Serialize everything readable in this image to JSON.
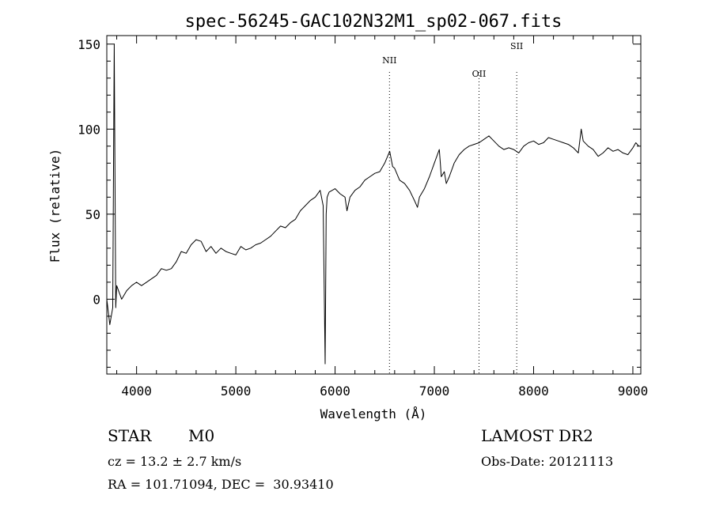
{
  "chart_data": {
    "type": "line",
    "title": "spec-56245-GAC102N32M1_sp02-067.fits",
    "xlabel": "Wavelength (Å)",
    "ylabel": "Flux (relative)",
    "xlim": [
      3700,
      9080
    ],
    "ylim": [
      -44,
      155
    ],
    "xticks": [
      4000,
      5000,
      6000,
      7000,
      8000,
      9000
    ],
    "yticks": [
      0,
      50,
      100,
      150
    ],
    "grid": false,
    "line_color": "#000000",
    "series": [
      {
        "x": [
          3700,
          3730,
          3760,
          3775,
          3790,
          3800,
          3850,
          3900,
          3950,
          4000,
          4050,
          4100,
          4150,
          4200,
          4250,
          4300,
          4350,
          4400,
          4450,
          4500,
          4550,
          4600,
          4650,
          4700,
          4750,
          4800,
          4850,
          4900,
          4950,
          5000,
          5050,
          5100,
          5150,
          5200,
          5250,
          5300,
          5350,
          5400,
          5450,
          5500,
          5550,
          5600,
          5650,
          5700,
          5750,
          5800,
          5850,
          5880,
          5900,
          5910,
          5920,
          5940,
          6000,
          6050,
          6100,
          6120,
          6150,
          6200,
          6250,
          6300,
          6350,
          6400,
          6450,
          6500,
          6550,
          6580,
          6600,
          6650,
          6700,
          6750,
          6800,
          6830,
          6850,
          6900,
          6950,
          7000,
          7050,
          7060,
          7070,
          7100,
          7120,
          7150,
          7200,
          7250,
          7300,
          7350,
          7400,
          7450,
          7500,
          7550,
          7600,
          7650,
          7700,
          7750,
          7800,
          7850,
          7900,
          7950,
          8000,
          8050,
          8100,
          8150,
          8200,
          8250,
          8300,
          8350,
          8400,
          8450,
          8480,
          8500,
          8550,
          8600,
          8650,
          8700,
          8750,
          8800,
          8850,
          8900,
          8950,
          9000,
          9030,
          9060
        ],
        "y": [
          0,
          -15,
          -5,
          150,
          -5,
          8,
          0,
          5,
          8,
          10,
          8,
          10,
          12,
          14,
          18,
          17,
          18,
          22,
          28,
          27,
          32,
          35,
          34,
          28,
          31,
          27,
          30,
          28,
          27,
          26,
          31,
          29,
          30,
          32,
          33,
          35,
          37,
          40,
          43,
          42,
          45,
          47,
          52,
          55,
          58,
          60,
          64,
          55,
          -38,
          50,
          60,
          63,
          65,
          62,
          60,
          52,
          60,
          64,
          66,
          70,
          72,
          74,
          75,
          80,
          87,
          78,
          77,
          70,
          68,
          64,
          58,
          54,
          60,
          65,
          72,
          80,
          88,
          80,
          72,
          75,
          68,
          72,
          80,
          85,
          88,
          90,
          91,
          92,
          94,
          96,
          93,
          90,
          88,
          89,
          88,
          86,
          90,
          92,
          93,
          91,
          92,
          95,
          94,
          93,
          92,
          91,
          89,
          86,
          100,
          93,
          90,
          88,
          84,
          86,
          89,
          87,
          88,
          86,
          85,
          89,
          92,
          90
        ]
      }
    ],
    "annotations": [
      {
        "label": "NII",
        "x": 6548
      },
      {
        "label": "OII",
        "x": 7450
      },
      {
        "label": "SII",
        "x": 7830
      }
    ]
  },
  "info": {
    "object_type": "STAR",
    "subclass": "M0",
    "cz": "cz = 13.2 ± 2.7 km/s",
    "radec": "RA = 101.71094, DEC =  30.93410",
    "survey": "LAMOST DR2",
    "obs_date": "Obs-Date: 20121113"
  }
}
